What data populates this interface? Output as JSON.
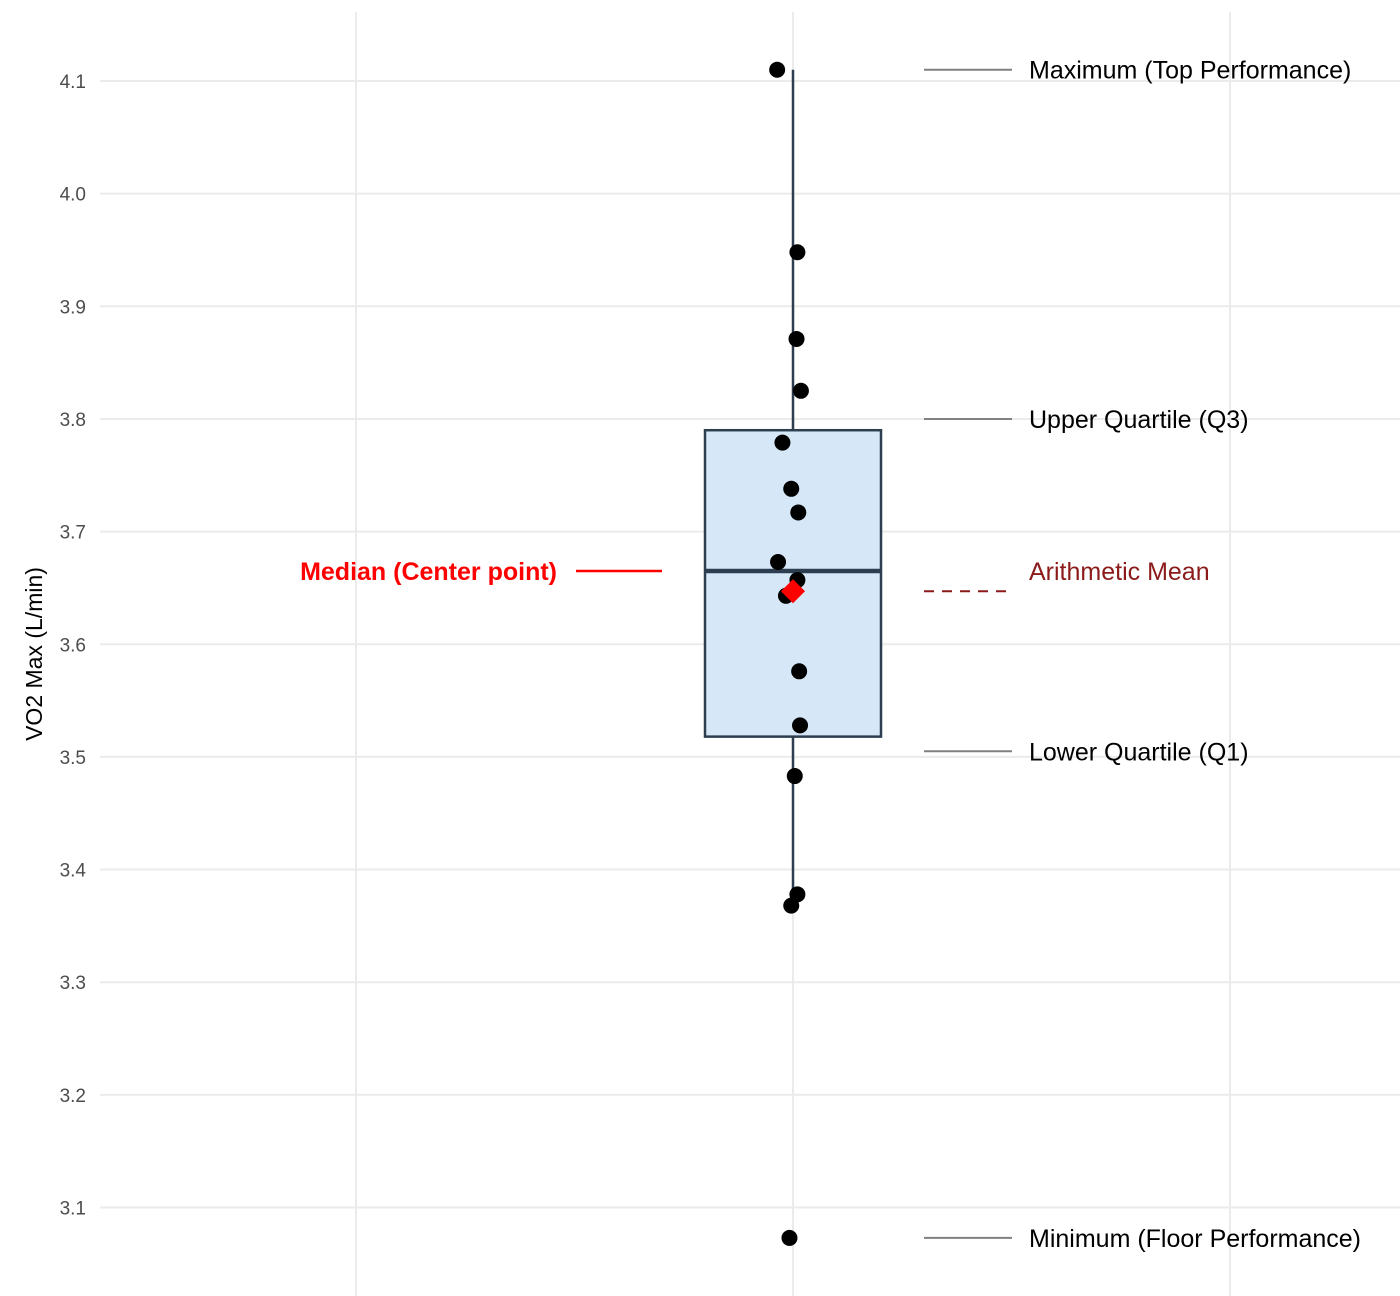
{
  "chart_data": {
    "type": "box",
    "ylabel": "VO2 Max (L/min)",
    "ylim": [
      3.04,
      4.16
    ],
    "y_ticks": [
      3.1,
      3.2,
      3.3,
      3.4,
      3.5,
      3.6,
      3.7,
      3.8,
      3.9,
      4.0,
      4.1
    ],
    "y_tick_labels": [
      "3.1",
      "3.2",
      "3.3",
      "3.4",
      "3.5",
      "3.6",
      "3.7",
      "3.8",
      "3.9",
      "4.0",
      "4.1"
    ],
    "grid": true,
    "box": {
      "lower_whisker": 3.37,
      "q1": 3.518,
      "median": 3.665,
      "q3": 3.79,
      "upper_whisker": 4.11,
      "mean": 3.647,
      "fill": "#d6e8f7",
      "stroke": "#2c3e50"
    },
    "points": [
      {
        "y": 4.11,
        "jitter": -0.18
      },
      {
        "y": 3.948,
        "jitter": 0.05
      },
      {
        "y": 3.871,
        "jitter": 0.04
      },
      {
        "y": 3.825,
        "jitter": 0.09
      },
      {
        "y": 3.779,
        "jitter": -0.12
      },
      {
        "y": 3.738,
        "jitter": -0.02
      },
      {
        "y": 3.717,
        "jitter": 0.06
      },
      {
        "y": 3.673,
        "jitter": -0.17
      },
      {
        "y": 3.657,
        "jitter": 0.05
      },
      {
        "y": 3.643,
        "jitter": -0.08
      },
      {
        "y": 3.576,
        "jitter": 0.07
      },
      {
        "y": 3.528,
        "jitter": 0.08
      },
      {
        "y": 3.483,
        "jitter": 0.02
      },
      {
        "y": 3.378,
        "jitter": 0.05
      },
      {
        "y": 3.368,
        "jitter": -0.02
      },
      {
        "y": 3.073,
        "jitter": -0.04
      }
    ],
    "annotations": [
      {
        "label": "Maximum (Top Performance)",
        "y": 4.11,
        "side": "right",
        "color": "#000000",
        "line_color": "#808080",
        "line_style": "solid",
        "bold": false
      },
      {
        "label": "Upper Quartile (Q3)",
        "y": 3.8,
        "side": "right",
        "color": "#000000",
        "line_color": "#808080",
        "line_style": "solid",
        "bold": false
      },
      {
        "label": "Arithmetic Mean",
        "y": 3.647,
        "label_y": 3.665,
        "side": "right",
        "color": "#8b1a1a",
        "line_color": "#8b1a1a",
        "line_style": "dashed",
        "bold": false
      },
      {
        "label": "Lower Quartile (Q1)",
        "y": 3.505,
        "side": "right",
        "color": "#000000",
        "line_color": "#808080",
        "line_style": "solid",
        "bold": false
      },
      {
        "label": "Minimum (Floor Performance)",
        "y": 3.073,
        "side": "right",
        "color": "#000000",
        "line_color": "#808080",
        "line_style": "solid",
        "bold": false
      },
      {
        "label": "Median (Center point)",
        "y": 3.665,
        "side": "left",
        "color": "#ff0000",
        "line_color": "#ff0000",
        "line_style": "solid",
        "bold": true
      }
    ],
    "colors": {
      "grid": "#ebebeb",
      "points": "#000000",
      "mean_marker": "#ff0000"
    }
  }
}
